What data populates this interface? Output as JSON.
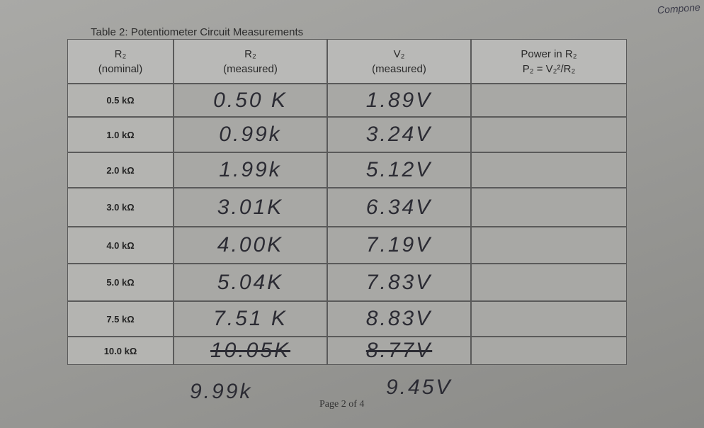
{
  "corner_note": "Compone",
  "title": "Table 2: Potentiometer Circuit Measurements",
  "table": {
    "headers": [
      [
        "R₂",
        "(nominal)"
      ],
      [
        "R₂",
        "(measured)"
      ],
      [
        "V₂",
        "(measured)"
      ],
      [
        "Power in R₂",
        "P₂ = V₂²/R₂"
      ]
    ],
    "rows": [
      [
        "0.5 kΩ",
        "0.50 K",
        "1.89V"
      ],
      [
        "1.0 kΩ",
        "0.99k",
        "3.24V"
      ],
      [
        "2.0 kΩ",
        "1.99k",
        "5.12V"
      ],
      [
        "3.0 kΩ",
        "3.01K",
        "6.34V"
      ],
      [
        "4.0 kΩ",
        "4.00K",
        "7.19V"
      ],
      [
        "5.0 kΩ",
        "5.04K",
        "7.83V"
      ],
      [
        "7.5 kΩ",
        "7.51 K",
        "8.83V"
      ],
      [
        "10.0 kΩ",
        "10.05K",
        "8.77V"
      ]
    ]
  },
  "corrections": {
    "measured": "9.99k",
    "voltage": "9.45V"
  },
  "footer": "Page 2 of 4"
}
